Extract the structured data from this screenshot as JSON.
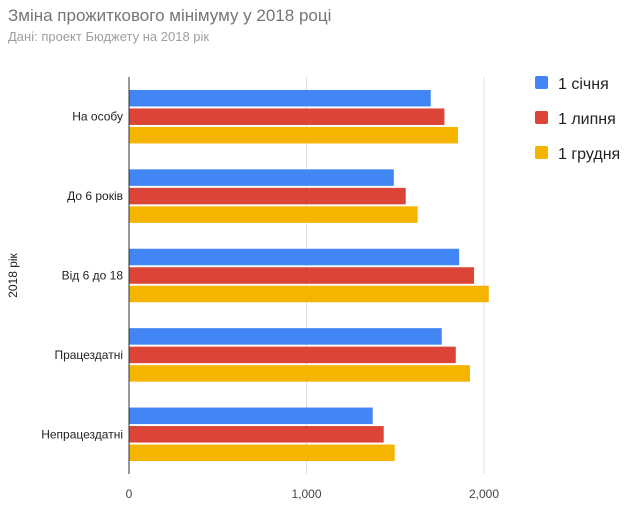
{
  "header": {
    "title": "Зміна прожиткового мінімуму у 2018 році",
    "subtitle": "Дані: проект Бюджету на 2018 рік"
  },
  "chart_data": {
    "type": "bar",
    "orientation": "horizontal",
    "title": "Зміна прожиткового мінімуму у 2018 році",
    "subtitle": "Дані: проект Бюджету на 2018 рік",
    "xlabel": "",
    "ylabel": "2018 рік",
    "xlim": [
      0,
      2000
    ],
    "xticks": [
      0,
      1000,
      2000
    ],
    "xtick_labels": [
      "0",
      "1,000",
      "2,000"
    ],
    "grid": true,
    "legend_position": "right",
    "categories": [
      "На особу",
      "До 6 років",
      "Від 6 до 18",
      "Працездатні",
      "Непрацездатні"
    ],
    "series": [
      {
        "name": "1 січня",
        "color": "#4285f4",
        "values": [
          1700,
          1492,
          1860,
          1762,
          1373
        ]
      },
      {
        "name": "1 липня",
        "color": "#db4437",
        "values": [
          1777,
          1559,
          1944,
          1841,
          1435
        ]
      },
      {
        "name": "1 грудня",
        "color": "#f4b400",
        "values": [
          1853,
          1626,
          2027,
          1921,
          1497
        ]
      }
    ]
  }
}
